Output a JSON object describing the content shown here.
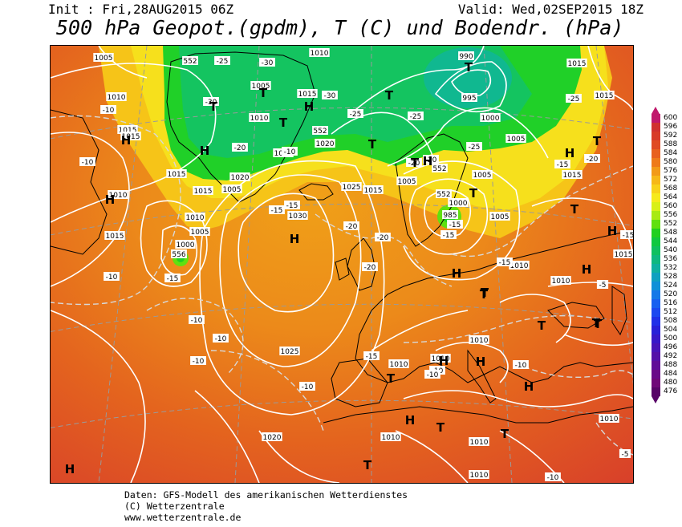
{
  "header": {
    "init": "Init : Fri,28AUG2015 06Z",
    "valid": "Valid: Wed,02SEP2015 18Z",
    "title": "500 hPa Geopot.(gpdm), T (C) und Bodendr. (hPa)"
  },
  "legend": {
    "levels": [
      {
        "value": "600",
        "color": "#c0186c"
      },
      {
        "value": "596",
        "color": "#d03030"
      },
      {
        "value": "592",
        "color": "#d83a28"
      },
      {
        "value": "588",
        "color": "#e04a22"
      },
      {
        "value": "584",
        "color": "#e8601e"
      },
      {
        "value": "580",
        "color": "#ee7a1a"
      },
      {
        "value": "576",
        "color": "#f29a18"
      },
      {
        "value": "572",
        "color": "#f6b818"
      },
      {
        "value": "568",
        "color": "#f8d21a"
      },
      {
        "value": "564",
        "color": "#f6ea1c"
      },
      {
        "value": "560",
        "color": "#d8f018"
      },
      {
        "value": "556",
        "color": "#a8ea14"
      },
      {
        "value": "552",
        "color": "#60e010"
      },
      {
        "value": "548",
        "color": "#20d020"
      },
      {
        "value": "544",
        "color": "#10c840"
      },
      {
        "value": "540",
        "color": "#10c060"
      },
      {
        "value": "536",
        "color": "#10b880"
      },
      {
        "value": "532",
        "color": "#10b0a0"
      },
      {
        "value": "528",
        "color": "#10a0c0"
      },
      {
        "value": "524",
        "color": "#1090d8"
      },
      {
        "value": "520",
        "color": "#1478e8"
      },
      {
        "value": "516",
        "color": "#1860f0"
      },
      {
        "value": "512",
        "color": "#1c48f0"
      },
      {
        "value": "508",
        "color": "#2030e8"
      },
      {
        "value": "504",
        "color": "#2820d8"
      },
      {
        "value": "500",
        "color": "#3818c8"
      },
      {
        "value": "496",
        "color": "#4814b8"
      },
      {
        "value": "492",
        "color": "#5410a8"
      },
      {
        "value": "488",
        "color": "#600c98"
      },
      {
        "value": "484",
        "color": "#6a0a88"
      },
      {
        "value": "480",
        "color": "#700878"
      },
      {
        "value": "476",
        "color": "#580468"
      }
    ]
  },
  "map": {
    "pressure_labels": [
      "1005",
      "1010",
      "1015",
      "1020",
      "1025",
      "1030",
      "1000",
      "995",
      "990",
      "985"
    ],
    "temperature_labels": [
      "-5",
      "-10",
      "-15",
      "-20",
      "-25",
      "-30"
    ],
    "geopotential_labels": [
      "552",
      "556"
    ],
    "high_symbol": "H",
    "low_symbol": "T"
  },
  "footer": {
    "line1": "Daten: GFS-Modell des amerikanischen Wetterdienstes",
    "line2": "(C) Wetterzentrale",
    "line3": "www.wetterzentrale.de"
  }
}
